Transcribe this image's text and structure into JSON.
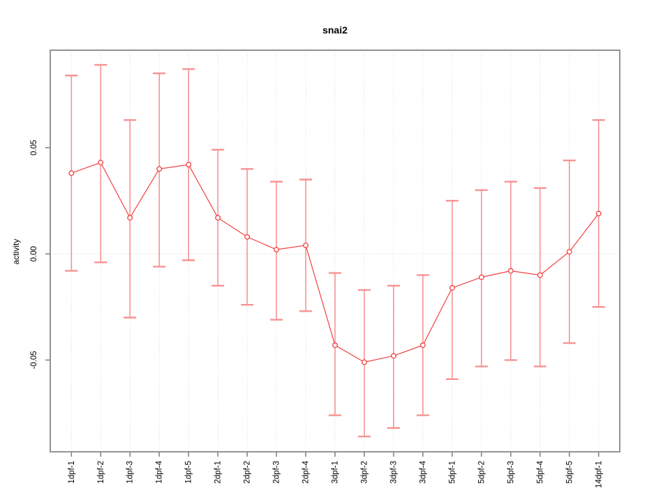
{
  "chart_data": {
    "type": "line",
    "title": "snai2",
    "xlabel": "",
    "ylabel": "activity",
    "categories": [
      "1dpf-1",
      "1dpf-2",
      "1dpf-3",
      "1dpf-4",
      "1dpf-5",
      "2dpf-1",
      "2dpf-2",
      "2dpf-3",
      "2dpf-4",
      "3dpf-1",
      "3dpf-2",
      "3dpf-3",
      "3dpf-4",
      "5dpf-1",
      "5dpf-2",
      "5dpf-3",
      "5dpf-4",
      "5dpf-5",
      "14dpf-1"
    ],
    "series": [
      {
        "name": "activity",
        "values": [
          0.038,
          0.043,
          0.017,
          0.04,
          0.042,
          0.017,
          0.008,
          0.002,
          0.004,
          -0.043,
          -0.051,
          -0.048,
          -0.043,
          -0.016,
          -0.011,
          -0.008,
          -0.01,
          0.001,
          0.019
        ],
        "error_low": [
          -0.008,
          -0.004,
          -0.03,
          -0.006,
          -0.003,
          -0.015,
          -0.024,
          -0.031,
          -0.027,
          -0.076,
          -0.086,
          -0.082,
          -0.076,
          -0.059,
          -0.053,
          -0.05,
          -0.053,
          -0.042,
          -0.025
        ],
        "error_high": [
          0.084,
          0.089,
          0.063,
          0.085,
          0.087,
          0.049,
          0.04,
          0.034,
          0.035,
          -0.009,
          -0.017,
          -0.015,
          -0.01,
          0.025,
          0.03,
          0.034,
          0.031,
          0.044,
          0.063
        ]
      }
    ],
    "y_ticks": [
      {
        "label": "-0.05",
        "value": -0.05
      },
      {
        "label": "0.00",
        "value": 0.0
      },
      {
        "label": "0.05",
        "value": 0.05
      }
    ],
    "ylim": [
      -0.0932,
      0.0959
    ],
    "grid": {
      "vertical": "dotted line at every category",
      "horizontal": "dotted line at y=0 only"
    },
    "legend": "none",
    "point_style": "open-circle",
    "colors": {
      "line": "#f04040",
      "point": "#f04040",
      "error_bar": "#f79292",
      "frame": "#878787",
      "grid_line": "#dcdcdc",
      "text": "#000000"
    }
  }
}
